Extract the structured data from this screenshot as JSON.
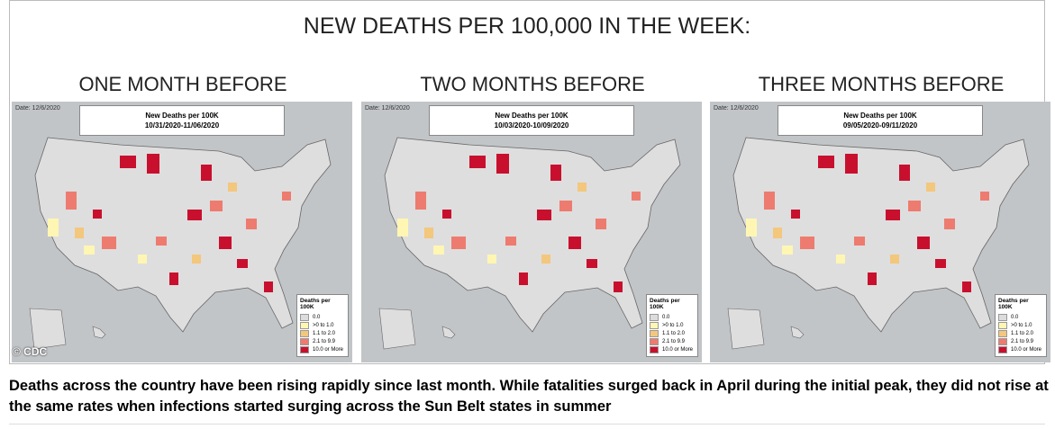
{
  "header": {
    "title": "NEW DEATHS PER 100,000 IN THE WEEK:"
  },
  "maps": [
    {
      "label": "ONE MONTH BEFORE",
      "date": "Date: 12/6/2020",
      "box_title": "New Deaths per 100K",
      "range": "10/31/2020-11/06/2020",
      "legend_title": "Deaths per 100K",
      "legend": [
        {
          "label": "0.0",
          "color": "#dcdcdc"
        },
        {
          "label": ">0 to 1.0",
          "color": "#fff6b3"
        },
        {
          "label": "1.1 to 2.0",
          "color": "#f3c77c"
        },
        {
          "label": "2.1 to 9.9",
          "color": "#ee7b6f"
        },
        {
          "label": "10.0 or More",
          "color": "#c8102e"
        }
      ]
    },
    {
      "label": "TWO MONTHS BEFORE",
      "date": "Date: 12/6/2020",
      "box_title": "New Deaths per 100K",
      "range": "10/03/2020-10/09/2020",
      "legend_title": "Deaths per 100K",
      "legend": [
        {
          "label": "0.0",
          "color": "#dcdcdc"
        },
        {
          "label": ">0 to 1.0",
          "color": "#fff6b3"
        },
        {
          "label": "1.1 to 2.0",
          "color": "#f3c77c"
        },
        {
          "label": "2.1 to 9.9",
          "color": "#ee7b6f"
        },
        {
          "label": "10.0 or More",
          "color": "#c8102e"
        }
      ]
    },
    {
      "label": "THREE MONTHS BEFORE",
      "date": "Date: 12/6/2020",
      "box_title": "New Deaths per 100K",
      "range": "09/05/2020-09/11/2020",
      "legend_title": "Deaths per 100K",
      "legend": [
        {
          "label": "0.0",
          "color": "#dcdcdc"
        },
        {
          "label": ">0 to 1.0",
          "color": "#fff6b3"
        },
        {
          "label": "1.1 to 2.0",
          "color": "#f3c77c"
        },
        {
          "label": "2.1 to 9.9",
          "color": "#ee7b6f"
        },
        {
          "label": "10.0 or More",
          "color": "#c8102e"
        }
      ]
    }
  ],
  "credit": "© CDC",
  "caption": "Deaths across the country have been rising rapidly since last month. While fatalities surged back in April during the initial peak, they did not rise at the same rates when infections started surging across the Sun Belt states in summer"
}
